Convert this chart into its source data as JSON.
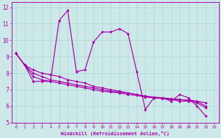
{
  "xlabel": "Windchill (Refroidissement éolien,°C)",
  "bg_color": "#cce8e8",
  "line_color": "#aa00aa",
  "xlim": [
    -0.5,
    23.5
  ],
  "ylim": [
    5,
    12.3
  ],
  "xticks": [
    0,
    1,
    2,
    3,
    4,
    5,
    6,
    7,
    8,
    9,
    10,
    11,
    12,
    13,
    14,
    15,
    16,
    17,
    18,
    19,
    20,
    21,
    22,
    23
  ],
  "yticks": [
    5,
    6,
    7,
    8,
    9,
    10,
    11,
    12
  ],
  "grid_color": "#aad4d4",
  "x": [
    0,
    1,
    2,
    3,
    4,
    5,
    6,
    7,
    8,
    9,
    10,
    11,
    12,
    13,
    14,
    15,
    16,
    17,
    18,
    19,
    20,
    21,
    22
  ],
  "y_main": [
    9.2,
    8.5,
    7.5,
    7.5,
    7.5,
    11.2,
    11.8,
    8.1,
    8.2,
    9.9,
    10.5,
    10.5,
    10.7,
    10.4,
    8.1,
    5.8,
    6.5,
    6.5,
    6.3,
    6.7,
    6.5,
    6.0,
    5.4
  ],
  "y_lin1": [
    9.2,
    8.5,
    8.2,
    8.0,
    7.9,
    7.8,
    7.6,
    7.5,
    7.4,
    7.2,
    7.1,
    7.0,
    6.9,
    6.8,
    6.7,
    6.6,
    6.55,
    6.5,
    6.45,
    6.4,
    6.35,
    6.3,
    6.2
  ],
  "y_lin2": [
    9.2,
    8.5,
    8.0,
    7.8,
    7.6,
    7.5,
    7.4,
    7.3,
    7.2,
    7.1,
    7.0,
    6.9,
    6.85,
    6.8,
    6.7,
    6.6,
    6.5,
    6.5,
    6.4,
    6.4,
    6.35,
    6.3,
    6.0
  ],
  "y_lin3": [
    9.2,
    8.5,
    7.8,
    7.6,
    7.5,
    7.4,
    7.3,
    7.2,
    7.1,
    7.0,
    6.9,
    6.85,
    6.8,
    6.7,
    6.65,
    6.55,
    6.5,
    6.45,
    6.4,
    6.3,
    6.3,
    6.2,
    5.9
  ]
}
